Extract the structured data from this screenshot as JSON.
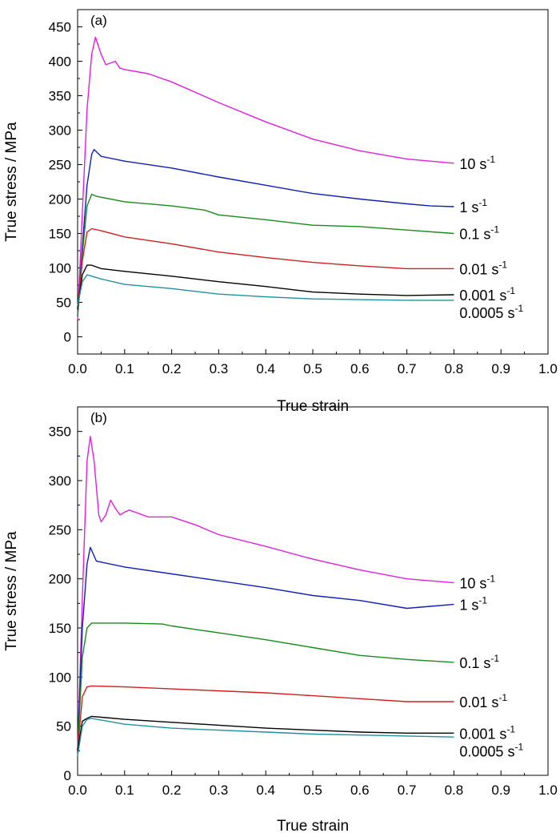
{
  "chart_data": [
    {
      "type": "line",
      "panel_label": "(a)",
      "xlabel": "True strain",
      "ylabel": "True stress / MPa",
      "xlim": [
        0,
        1.0
      ],
      "ylim": [
        -25,
        475
      ],
      "x_ticks": [
        0.0,
        0.1,
        0.2,
        0.3,
        0.4,
        0.5,
        0.6,
        0.7,
        0.8,
        0.9,
        1.0
      ],
      "x_tick_labels": [
        "0.0",
        "0.1",
        "0.2",
        "0.3",
        "0.4",
        "0.5",
        "0.6",
        "0.7",
        "0.8",
        "0.9",
        "1.0"
      ],
      "y_ticks": [
        0,
        50,
        100,
        150,
        200,
        250,
        300,
        350,
        400,
        450
      ],
      "y_tick_labels": [
        "0",
        "50",
        "100",
        "150",
        "200",
        "250",
        "300",
        "350",
        "400",
        "450"
      ],
      "grid": false,
      "series": [
        {
          "name": "10 s⁻¹",
          "label_text": "10 s",
          "label_sup": "-1",
          "color": "#e020e0",
          "points": [
            [
              0,
              25
            ],
            [
              0.01,
              180
            ],
            [
              0.02,
              330
            ],
            [
              0.03,
              410
            ],
            [
              0.038,
              435
            ],
            [
              0.05,
              410
            ],
            [
              0.06,
              395
            ],
            [
              0.08,
              400
            ],
            [
              0.09,
              390
            ],
            [
              0.1,
              388
            ],
            [
              0.15,
              382
            ],
            [
              0.2,
              370
            ],
            [
              0.3,
              340
            ],
            [
              0.4,
              312
            ],
            [
              0.5,
              287
            ],
            [
              0.6,
              270
            ],
            [
              0.7,
              258
            ],
            [
              0.8,
              252
            ]
          ]
        },
        {
          "name": "1 s⁻¹",
          "label_text": "1 s",
          "label_sup": "-1",
          "color": "#1020b0",
          "points": [
            [
              0,
              30
            ],
            [
              0.01,
              130
            ],
            [
              0.02,
              220
            ],
            [
              0.03,
              265
            ],
            [
              0.035,
              272
            ],
            [
              0.05,
              262
            ],
            [
              0.1,
              255
            ],
            [
              0.2,
              245
            ],
            [
              0.3,
              232
            ],
            [
              0.4,
              220
            ],
            [
              0.5,
              208
            ],
            [
              0.6,
              200
            ],
            [
              0.7,
              193
            ],
            [
              0.75,
              190
            ],
            [
              0.8,
              189
            ]
          ]
        },
        {
          "name": "0.1 s⁻¹",
          "label_text": "0.1 s",
          "label_sup": "-1",
          "color": "#1a8a1a",
          "points": [
            [
              0,
              30
            ],
            [
              0.01,
              120
            ],
            [
              0.02,
              190
            ],
            [
              0.03,
              207
            ],
            [
              0.04,
              204
            ],
            [
              0.1,
              196
            ],
            [
              0.2,
              190
            ],
            [
              0.27,
              184
            ],
            [
              0.3,
              177
            ],
            [
              0.4,
              170
            ],
            [
              0.5,
              162
            ],
            [
              0.6,
              160
            ],
            [
              0.7,
              155
            ],
            [
              0.8,
              150
            ]
          ]
        },
        {
          "name": "0.01 s⁻¹",
          "label_text": "0.01 s",
          "label_sup": "-1",
          "color": "#d02020",
          "points": [
            [
              0,
              40
            ],
            [
              0.01,
              110
            ],
            [
              0.02,
              152
            ],
            [
              0.03,
              157
            ],
            [
              0.05,
              154
            ],
            [
              0.1,
              145
            ],
            [
              0.2,
              135
            ],
            [
              0.3,
              123
            ],
            [
              0.4,
              115
            ],
            [
              0.5,
              108
            ],
            [
              0.6,
              103
            ],
            [
              0.7,
              99
            ],
            [
              0.8,
              99
            ]
          ]
        },
        {
          "name": "0.001 s⁻¹",
          "label_text": "0.001 s",
          "label_sup": "-1",
          "color": "#000000",
          "points": [
            [
              0,
              40
            ],
            [
              0.01,
              90
            ],
            [
              0.02,
              104
            ],
            [
              0.03,
              104
            ],
            [
              0.05,
              99
            ],
            [
              0.1,
              95
            ],
            [
              0.2,
              88
            ],
            [
              0.3,
              80
            ],
            [
              0.4,
              73
            ],
            [
              0.5,
              65
            ],
            [
              0.6,
              62
            ],
            [
              0.7,
              60
            ],
            [
              0.8,
              61
            ]
          ]
        },
        {
          "name": "0.0005 s⁻¹",
          "label_text": "0.0005 s",
          "label_sup": "-1",
          "color": "#2090a0",
          "points": [
            [
              0,
              45
            ],
            [
              0.01,
              80
            ],
            [
              0.02,
              90
            ],
            [
              0.03,
              88
            ],
            [
              0.05,
              84
            ],
            [
              0.1,
              76
            ],
            [
              0.2,
              70
            ],
            [
              0.3,
              62
            ],
            [
              0.4,
              58
            ],
            [
              0.5,
              55
            ],
            [
              0.6,
              54
            ],
            [
              0.7,
              53
            ],
            [
              0.8,
              53
            ]
          ]
        }
      ]
    },
    {
      "type": "line",
      "panel_label": "(b)",
      "xlabel": "True strain",
      "ylabel": "True stress / MPa",
      "xlim": [
        0,
        1.0
      ],
      "ylim": [
        0,
        375
      ],
      "x_ticks": [
        0.0,
        0.1,
        0.2,
        0.3,
        0.4,
        0.5,
        0.6,
        0.7,
        0.8,
        0.9,
        1.0
      ],
      "x_tick_labels": [
        "0.0",
        "0.1",
        "0.2",
        "0.3",
        "0.4",
        "0.5",
        "0.6",
        "0.7",
        "0.8",
        "0.9",
        "1.0"
      ],
      "y_ticks": [
        0,
        50,
        100,
        150,
        200,
        250,
        300,
        350
      ],
      "y_tick_labels": [
        "0",
        "50",
        "100",
        "150",
        "200",
        "250",
        "300",
        "350"
      ],
      "grid": false,
      "series": [
        {
          "name": "10 s⁻¹",
          "label_text": "10 s",
          "label_sup": "-1",
          "color": "#e020e0",
          "points": [
            [
              0,
              25
            ],
            [
              0.01,
              180
            ],
            [
              0.02,
              320
            ],
            [
              0.027,
              345
            ],
            [
              0.035,
              320
            ],
            [
              0.045,
              265
            ],
            [
              0.05,
              258
            ],
            [
              0.06,
              265
            ],
            [
              0.07,
              280
            ],
            [
              0.08,
              272
            ],
            [
              0.09,
              265
            ],
            [
              0.1,
              268
            ],
            [
              0.11,
              270
            ],
            [
              0.15,
              263
            ],
            [
              0.2,
              263
            ],
            [
              0.25,
              255
            ],
            [
              0.3,
              245
            ],
            [
              0.4,
              233
            ],
            [
              0.5,
              220
            ],
            [
              0.6,
              209
            ],
            [
              0.7,
              200
            ],
            [
              0.8,
              196
            ]
          ]
        },
        {
          "name": "1 s⁻¹",
          "label_text": "1 s",
          "label_sup": "-1",
          "color": "#1020b0",
          "points": [
            [
              0,
              25
            ],
            [
              0.01,
              150
            ],
            [
              0.02,
              215
            ],
            [
              0.027,
              232
            ],
            [
              0.04,
              218
            ],
            [
              0.1,
              212
            ],
            [
              0.2,
              205
            ],
            [
              0.3,
              198
            ],
            [
              0.4,
              191
            ],
            [
              0.5,
              183
            ],
            [
              0.6,
              178
            ],
            [
              0.7,
              170
            ],
            [
              0.75,
              172
            ],
            [
              0.8,
              174
            ]
          ]
        },
        {
          "name": "0.1 s⁻¹",
          "label_text": "0.1 s",
          "label_sup": "-1",
          "color": "#1a8a1a",
          "points": [
            [
              0,
              25
            ],
            [
              0.01,
              120
            ],
            [
              0.02,
              150
            ],
            [
              0.03,
              155
            ],
            [
              0.1,
              155
            ],
            [
              0.18,
              154
            ],
            [
              0.2,
              152
            ],
            [
              0.3,
              145
            ],
            [
              0.4,
              138
            ],
            [
              0.5,
              130
            ],
            [
              0.6,
              122
            ],
            [
              0.7,
              118
            ],
            [
              0.8,
              115
            ]
          ]
        },
        {
          "name": "0.01 s⁻¹",
          "label_text": "0.01 s",
          "label_sup": "-1",
          "color": "#d02020",
          "points": [
            [
              0,
              25
            ],
            [
              0.01,
              80
            ],
            [
              0.02,
              90
            ],
            [
              0.03,
              91
            ],
            [
              0.1,
              90
            ],
            [
              0.2,
              88
            ],
            [
              0.3,
              86
            ],
            [
              0.4,
              84
            ],
            [
              0.5,
              81
            ],
            [
              0.6,
              78
            ],
            [
              0.7,
              75
            ],
            [
              0.8,
              75
            ]
          ]
        },
        {
          "name": "0.001 s⁻¹",
          "label_text": "0.001 s",
          "label_sup": "-1",
          "color": "#000000",
          "points": [
            [
              0,
              25
            ],
            [
              0.01,
              55
            ],
            [
              0.02,
              58
            ],
            [
              0.03,
              60
            ],
            [
              0.1,
              57
            ],
            [
              0.2,
              54
            ],
            [
              0.3,
              51
            ],
            [
              0.4,
              48
            ],
            [
              0.5,
              46
            ],
            [
              0.6,
              44
            ],
            [
              0.7,
              43
            ],
            [
              0.8,
              43
            ]
          ]
        },
        {
          "name": "0.0005 s⁻¹",
          "label_text": "0.0005 s",
          "label_sup": "-1",
          "color": "#2090a0",
          "points": [
            [
              0,
              20
            ],
            [
              0.01,
              50
            ],
            [
              0.02,
              57
            ],
            [
              0.03,
              58
            ],
            [
              0.1,
              52
            ],
            [
              0.2,
              48
            ],
            [
              0.3,
              46
            ],
            [
              0.4,
              44
            ],
            [
              0.5,
              42
            ],
            [
              0.6,
              41
            ],
            [
              0.7,
              40
            ],
            [
              0.8,
              39
            ]
          ]
        }
      ]
    }
  ]
}
